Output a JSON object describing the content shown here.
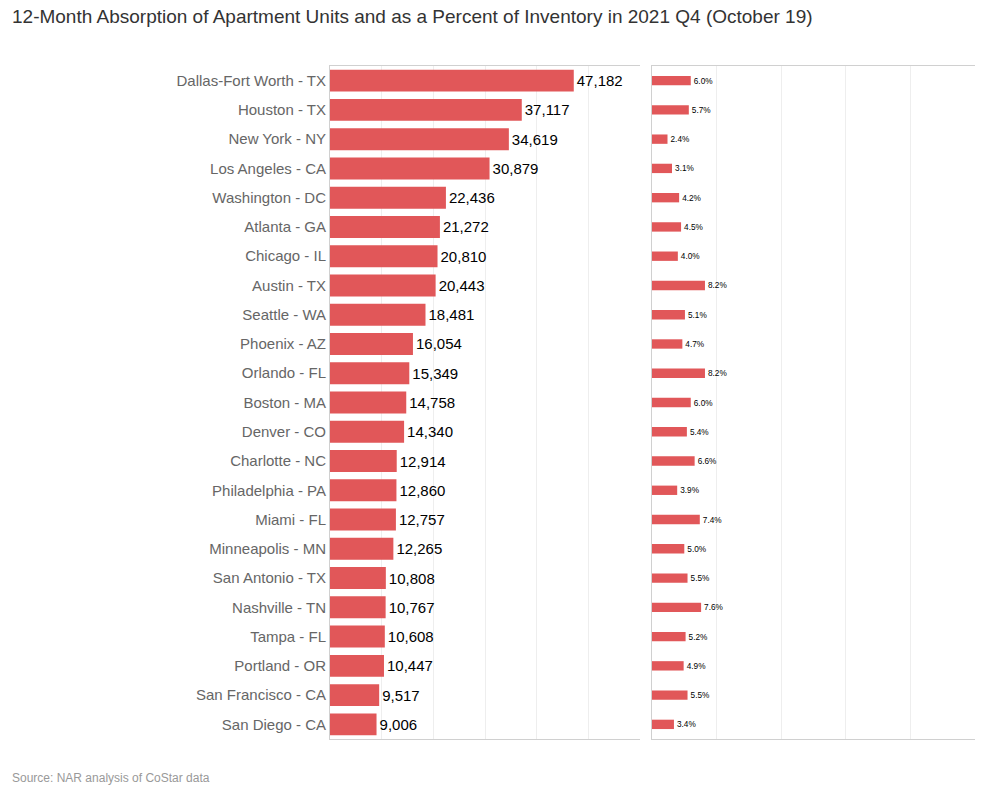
{
  "chart_data": [
    {
      "type": "bar",
      "title": "12-Month Absorption of Apartment Units and as a Percent of Inventory in 2021 Q4 (October 19)",
      "annotations": [
        "Source: NAR analysis of CoStar data"
      ],
      "orientation": "horizontal",
      "categories": [
        "Dallas-Fort Worth - TX",
        "Houston - TX",
        "New York - NY",
        "Los Angeles - CA",
        "Washington - DC",
        "Atlanta - GA",
        "Chicago - IL",
        "Austin - TX",
        "Seattle - WA",
        "Phoenix - AZ",
        "Orlando - FL",
        "Boston - MA",
        "Denver - CO",
        "Charlotte - NC",
        "Philadelphia - PA",
        "Miami - FL",
        "Minneapolis - MN",
        "San Antonio - TX",
        "Nashville - TN",
        "Tampa - FL",
        "Portland - OR",
        "San Francisco - CA",
        "San Diego - CA"
      ],
      "values": [
        47182,
        37117,
        34619,
        30879,
        22436,
        21272,
        20810,
        20443,
        18481,
        16054,
        15349,
        14758,
        14340,
        12914,
        12860,
        12757,
        12265,
        10808,
        10767,
        10608,
        10447,
        9517,
        9006
      ],
      "value_labels": [
        "47,182",
        "37,117",
        "34,619",
        "30,879",
        "22,436",
        "21,272",
        "20,810",
        "20,443",
        "18,481",
        "16,054",
        "15,349",
        "14,758",
        "14,340",
        "12,914",
        "12,860",
        "12,757",
        "12,265",
        "10,808",
        "10,767",
        "10,608",
        "10,447",
        "9,517",
        "9,006"
      ],
      "data_labels": true,
      "color": "#e15759",
      "xlim": [
        0,
        60000
      ],
      "xticks": [
        0,
        10000,
        20000,
        30000,
        40000,
        50000,
        60000
      ],
      "grid": true,
      "tick_labels": "y"
    },
    {
      "type": "bar",
      "orientation": "horizontal",
      "categories": [
        "Dallas-Fort Worth - TX",
        "Houston - TX",
        "New York - NY",
        "Los Angeles - CA",
        "Washington - DC",
        "Atlanta - GA",
        "Chicago - IL",
        "Austin - TX",
        "Seattle - WA",
        "Phoenix - AZ",
        "Orlando - FL",
        "Boston - MA",
        "Denver - CO",
        "Charlotte - NC",
        "Philadelphia - PA",
        "Miami - FL",
        "Minneapolis - MN",
        "San Antonio - TX",
        "Nashville - TN",
        "Tampa - FL",
        "Portland - OR",
        "San Francisco - CA",
        "San Diego - CA"
      ],
      "values": [
        6.0,
        5.7,
        2.4,
        3.1,
        4.2,
        4.5,
        4.0,
        8.2,
        5.1,
        4.7,
        8.2,
        6.0,
        5.4,
        6.6,
        3.9,
        7.4,
        5.0,
        5.5,
        7.6,
        5.2,
        4.9,
        5.5,
        3.4
      ],
      "value_labels": [
        "6.0%",
        "5.7%",
        "2.4%",
        "3.1%",
        "4.2%",
        "4.5%",
        "4.0%",
        "8.2%",
        "5.1%",
        "4.7%",
        "8.2%",
        "6.0%",
        "5.4%",
        "6.6%",
        "3.9%",
        "7.4%",
        "5.0%",
        "5.5%",
        "7.6%",
        "5.2%",
        "4.9%",
        "5.5%",
        "3.4%"
      ],
      "data_labels": true,
      "color": "#e15759",
      "xlim": [
        0,
        50
      ],
      "xticks": [
        0,
        10,
        20,
        30,
        40,
        50
      ],
      "grid": true,
      "tick_labels": false
    }
  ]
}
